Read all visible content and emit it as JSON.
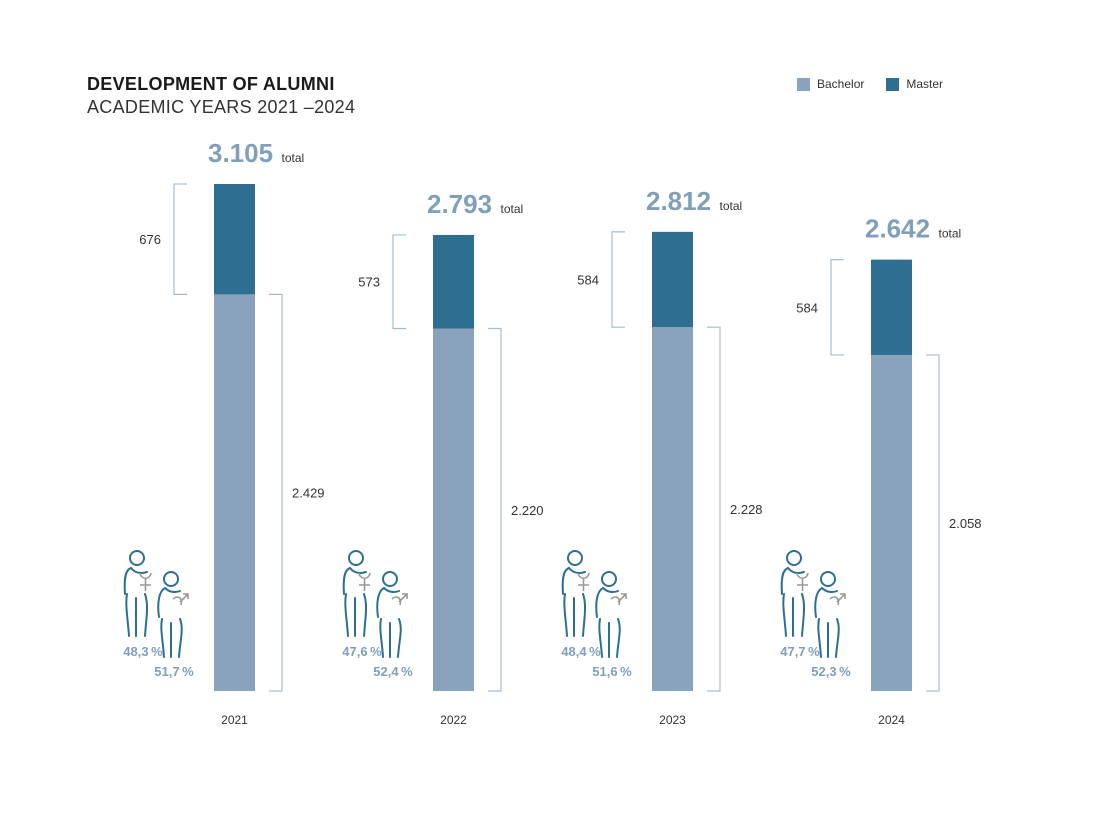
{
  "chart_data": {
    "type": "bar",
    "stacked": true,
    "title": "DEVELOPMENT OF ALUMNI",
    "subtitle": "ACADEMIC YEARS 2021 –2024",
    "categories": [
      "2021",
      "2022",
      "2023",
      "2024"
    ],
    "series": [
      {
        "name": "Bachelor",
        "color": "#88a3bb",
        "values": [
          2429,
          2220,
          2228,
          2058
        ],
        "labels": [
          "2.429",
          "2.220",
          "2.228",
          "2.058"
        ]
      },
      {
        "name": "Master",
        "color": "#2e6f91",
        "values": [
          676,
          573,
          584,
          584
        ],
        "labels": [
          "676",
          "573",
          "584",
          "584"
        ]
      }
    ],
    "totals": [
      3105,
      2793,
      2812,
      2642
    ],
    "total_labels": [
      "3.105",
      "2.793",
      "2.812",
      "2.642"
    ],
    "total_suffix": "total",
    "female_pct": [
      "48,3 %",
      "47,6 %",
      "48,4 %",
      "47,7 %"
    ],
    "male_pct": [
      "51,7 %",
      "52,4 %",
      "51,6 %",
      "52,3 %"
    ],
    "legend_position": "top-right",
    "grid": false,
    "ylim": [
      0,
      3105
    ]
  },
  "colors": {
    "bracket": "#a9bccd",
    "total_text": "#7f9fbb",
    "pct_text": "#7f9fbb",
    "icon_stroke": "#2e6f91",
    "symbol": "#999999"
  }
}
